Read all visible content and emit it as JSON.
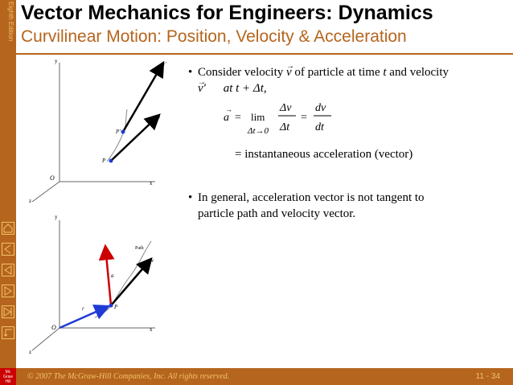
{
  "sidebar": {
    "edition": "Eighth Edition",
    "logo": {
      "top": "Mc",
      "mid": "Graw",
      "bottom": "Hill"
    }
  },
  "header": {
    "title": "Vector Mechanics for Engineers: Dynamics",
    "subtitle": "Curvilinear Motion:  Position, Velocity & Acceleration"
  },
  "figure1": {
    "labels": {
      "y": "y",
      "x": "x",
      "z": "z",
      "origin": "O",
      "p": "P",
      "pp": "P′",
      "v": "v",
      "vp": "v′"
    }
  },
  "figure2": {
    "labels": {
      "y": "y",
      "x": "x",
      "z": "z",
      "origin": "O",
      "p": "P",
      "path": "Path",
      "a": "a",
      "r": "r",
      "v": "v"
    }
  },
  "bullets": [
    {
      "line1a": "Consider velocity",
      "vec": "v",
      "line1b": "of particle at time",
      "t1": "t",
      "line1c": "and velocity",
      "vecp": "v′",
      "line2": "at t + Δt,"
    },
    {
      "line1": "In general, acceleration vector is not tangent to",
      "line2": "particle path and velocity vector."
    }
  ],
  "equation": {
    "lhs": "a",
    "lim": "lim",
    "limsub": "Δt→0",
    "num1": "Δv",
    "den1": "Δt",
    "num2": "dv",
    "den2": "dt",
    "eq2": "=",
    "desc": "instantaneous acceleration (vector)"
  },
  "footer": {
    "copyright": "© 2007 The McGraw-Hill Companies, Inc. All rights reserved.",
    "slide": "11 - 34"
  },
  "colors": {
    "brand": "#b5651d",
    "footer_text": "#f3c36b",
    "accel_arrow": "#cc0000",
    "r_arrow": "#1f3bd6"
  },
  "icons": [
    "home-icon",
    "back-icon",
    "prev-icon",
    "next-icon",
    "end-icon",
    "return-icon"
  ]
}
